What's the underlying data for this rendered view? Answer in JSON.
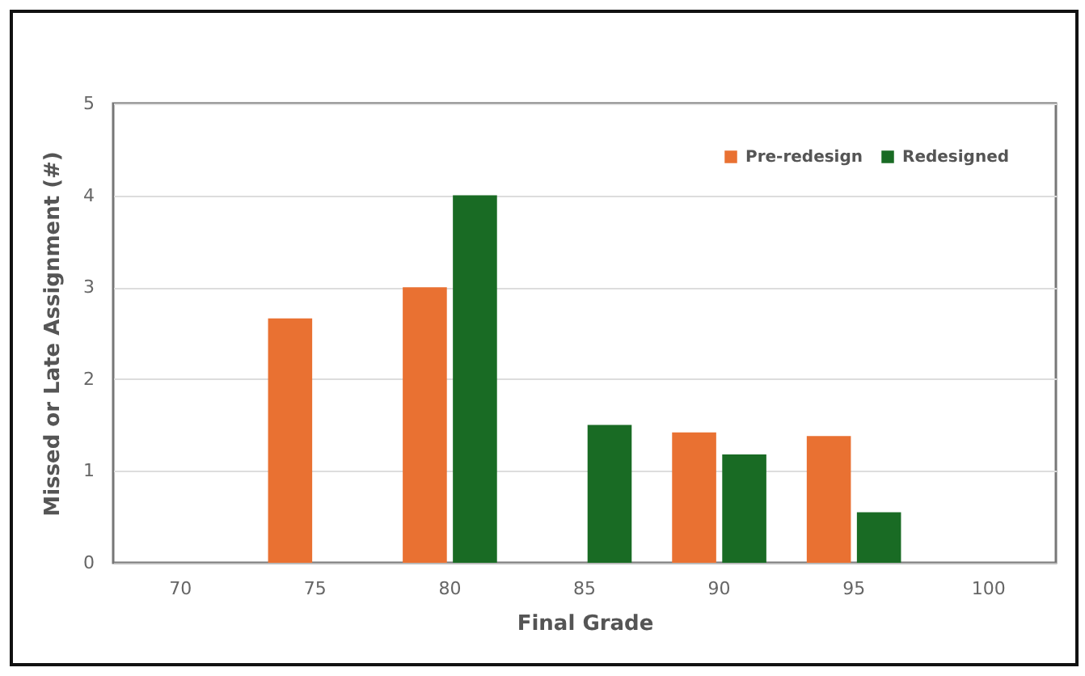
{
  "chart_data": {
    "type": "bar",
    "xlabel": "Final Grade",
    "ylabel": "Missed or Late Assignment (#)",
    "categories": [
      "70",
      "75",
      "80",
      "85",
      "90",
      "95",
      "100"
    ],
    "series": [
      {
        "name": "Pre-redesign",
        "color": "#e97132",
        "values": [
          null,
          2.66,
          3,
          null,
          1.42,
          1.38,
          null
        ]
      },
      {
        "name": "Redesigned",
        "color": "#196b24",
        "values": [
          null,
          null,
          4,
          1.5,
          1.18,
          0.55,
          null
        ]
      }
    ],
    "ylim": [
      0,
      5
    ],
    "yticks": [
      0,
      1,
      2,
      3,
      4,
      5
    ],
    "grid": "y",
    "legend": "top right"
  }
}
